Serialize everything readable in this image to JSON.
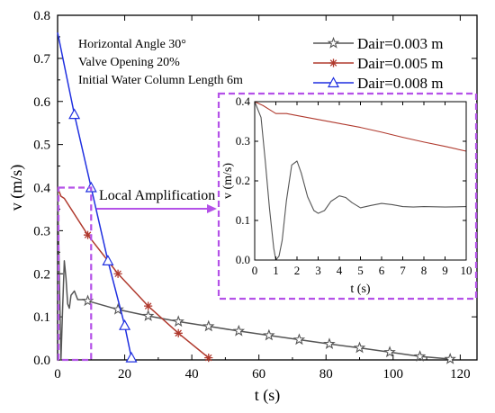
{
  "colors": {
    "series_0": "#555555",
    "series_1": "#b03a2e",
    "series_2": "#1f2fe0",
    "highlight": "#b452e8",
    "axis": "#000000"
  },
  "annotations": {
    "conditions": [
      "Horizontal Angle 30°",
      "Valve Opening 20%",
      "Initial Water Column Length 6m"
    ],
    "callout": "Local Amplification"
  },
  "chart_data": [
    {
      "type": "line",
      "xlabel": "t  (s)",
      "ylabel": "v  (m/s)",
      "xlim": [
        0,
        125
      ],
      "ylim": [
        0,
        0.8
      ],
      "xticks": [
        "0",
        "20",
        "40",
        "60",
        "80",
        "100",
        "120"
      ],
      "yticks": [
        "0.0",
        "0.1",
        "0.2",
        "0.3",
        "0.4",
        "0.5",
        "0.6",
        "0.7",
        "0.8"
      ],
      "grid": false,
      "legend_position": "top-right",
      "series": [
        {
          "name": "Dair=0.003 m",
          "marker": "star",
          "x": [
            0,
            0.5,
            1,
            1.5,
            2,
            2.5,
            3,
            3.5,
            4,
            5,
            6,
            7,
            8,
            9,
            18,
            27,
            36,
            45,
            54,
            63,
            72,
            81,
            90,
            99,
            108,
            117
          ],
          "y": [
            0.4,
            0.2,
            0.0,
            0.12,
            0.23,
            0.19,
            0.13,
            0.12,
            0.15,
            0.16,
            0.14,
            0.14,
            0.14,
            0.137,
            0.117,
            0.102,
            0.089,
            0.078,
            0.067,
            0.057,
            0.047,
            0.037,
            0.028,
            0.018,
            0.008,
            0.002
          ],
          "marker_x": [
            9,
            18,
            27,
            36,
            45,
            54,
            63,
            72,
            81,
            90,
            99,
            108,
            117
          ]
        },
        {
          "name": "Dair=0.005 m",
          "marker": "asterisk",
          "x": [
            0,
            1,
            2,
            9,
            18,
            27,
            36,
            45
          ],
          "y": [
            0.4,
            0.38,
            0.375,
            0.29,
            0.2,
            0.125,
            0.062,
            0.005
          ],
          "marker_x": [
            9,
            18,
            27,
            36,
            45
          ]
        },
        {
          "name": "Dair=0.008 m",
          "marker": "triangle",
          "x": [
            0,
            5,
            10,
            15,
            20,
            22
          ],
          "y": [
            0.76,
            0.57,
            0.4,
            0.23,
            0.08,
            0.005
          ],
          "marker_x": [
            5,
            10,
            15,
            20,
            22
          ]
        }
      ]
    },
    {
      "type": "line",
      "xlabel": "t (s)",
      "ylabel": "v (m/s)",
      "xlim": [
        0,
        10
      ],
      "ylim": [
        0,
        0.4
      ],
      "xticks": [
        "0",
        "1",
        "2",
        "3",
        "4",
        "5",
        "6",
        "7",
        "8",
        "9",
        "10"
      ],
      "yticks": [
        "0.0",
        "0.1",
        "0.2",
        "0.3",
        "0.4"
      ],
      "series": [
        {
          "name": "Dair=0.003 m",
          "x": [
            0,
            0.3,
            0.5,
            0.7,
            0.9,
            1.0,
            1.15,
            1.3,
            1.5,
            1.75,
            2.0,
            2.2,
            2.5,
            2.8,
            3.0,
            3.3,
            3.6,
            4.0,
            4.3,
            4.6,
            5.0,
            5.5,
            6.0,
            6.5,
            7.0,
            7.5,
            8.0,
            9.0,
            10.0
          ],
          "y": [
            0.4,
            0.36,
            0.25,
            0.13,
            0.03,
            0.0,
            0.01,
            0.05,
            0.15,
            0.24,
            0.25,
            0.22,
            0.16,
            0.125,
            0.118,
            0.125,
            0.148,
            0.162,
            0.158,
            0.145,
            0.132,
            0.138,
            0.143,
            0.14,
            0.135,
            0.134,
            0.135,
            0.134,
            0.135
          ]
        },
        {
          "name": "Dair=0.005 m",
          "x": [
            0,
            0.4,
            0.7,
            1.0,
            1.5,
            2,
            3,
            4,
            5,
            6,
            7,
            8,
            9,
            10
          ],
          "y": [
            0.4,
            0.39,
            0.38,
            0.37,
            0.37,
            0.365,
            0.355,
            0.345,
            0.335,
            0.323,
            0.31,
            0.298,
            0.287,
            0.275
          ]
        }
      ]
    }
  ]
}
